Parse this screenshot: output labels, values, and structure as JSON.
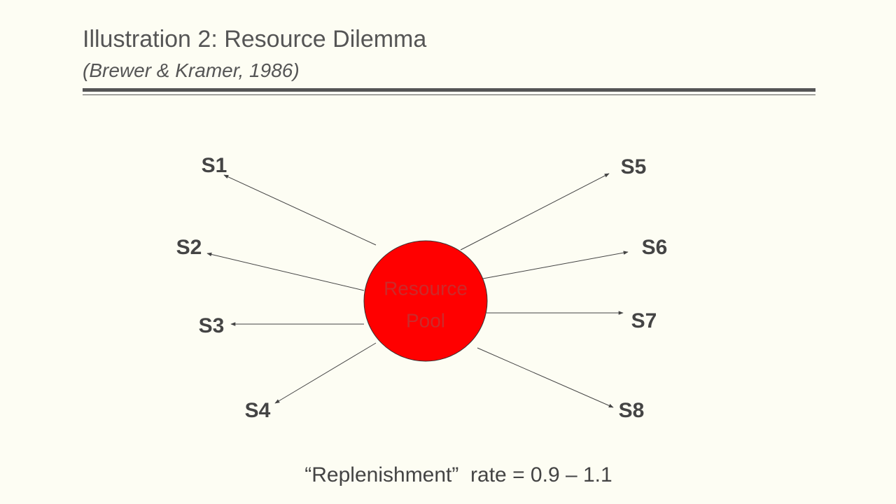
{
  "header": {
    "title": "Illustration 2: Resource Dilemma",
    "subtitle": "(Brewer & Kramer, 1986)"
  },
  "center": {
    "lines": [
      "Resource",
      "Pool"
    ]
  },
  "nodes": [
    {
      "label": "S1"
    },
    {
      "label": "S2"
    },
    {
      "label": "S3"
    },
    {
      "label": "S4"
    },
    {
      "label": "S5"
    },
    {
      "label": "S6"
    },
    {
      "label": "S7"
    },
    {
      "label": "S8"
    }
  ],
  "footer": {
    "text": "“Replenishment”  rate = 0.9 – 1.1"
  }
}
